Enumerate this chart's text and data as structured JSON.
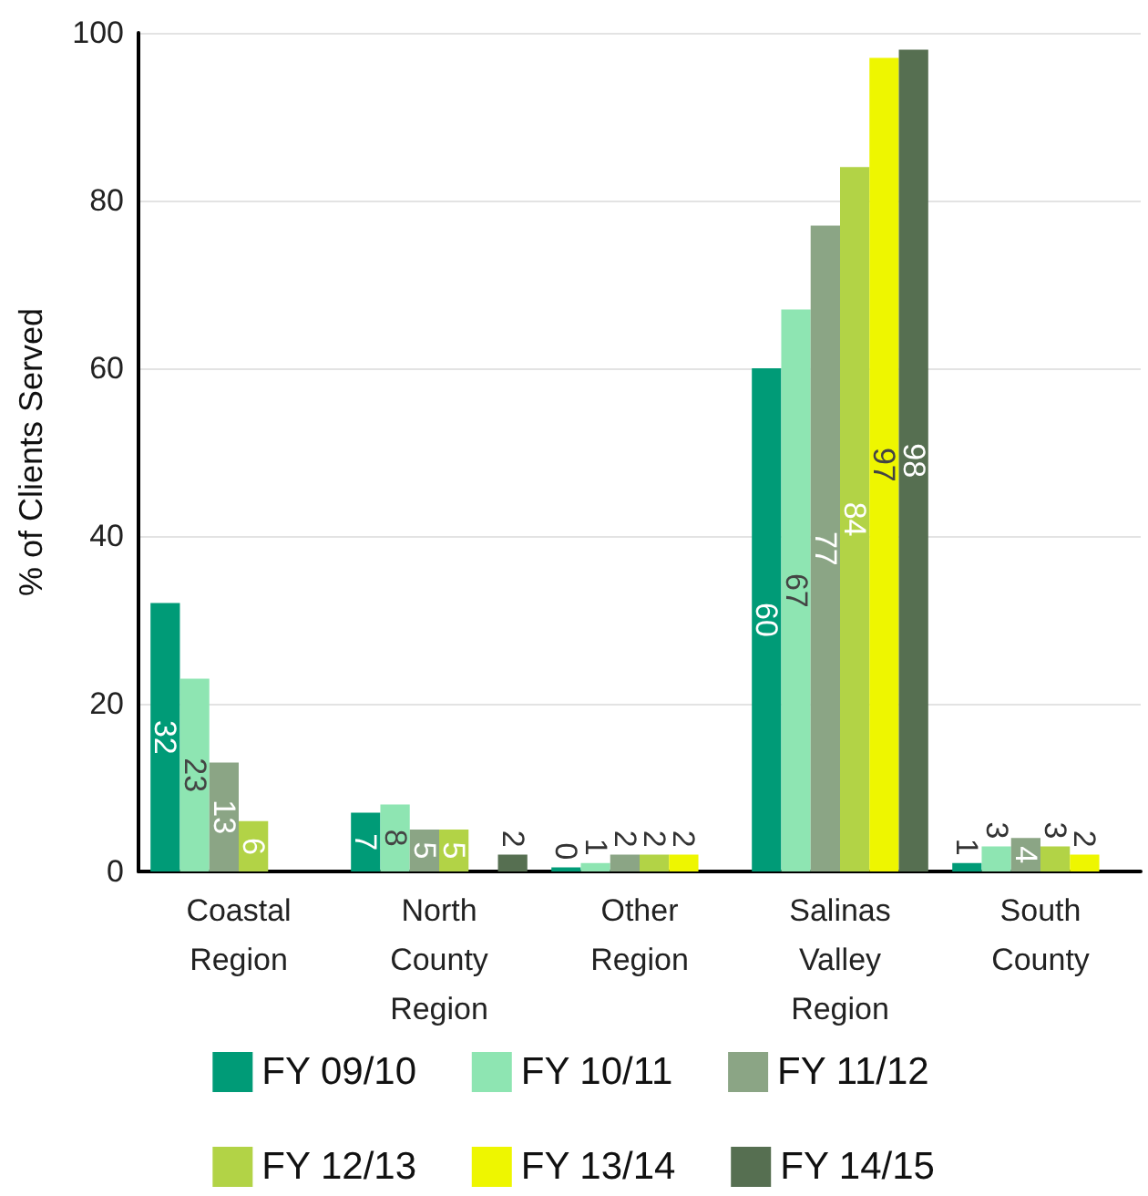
{
  "chart_data": {
    "type": "bar",
    "ylabel": "% of Clients Served",
    "categories": [
      "Coastal\nRegion",
      "North\nCounty\nRegion",
      "Other\nRegion",
      "Salinas\nValley\nRegion",
      "South\nCounty"
    ],
    "series": [
      {
        "name": "FY 09/10",
        "color": "#009b77",
        "values": [
          32,
          7,
          0.5,
          60,
          1
        ],
        "value_labels": [
          "32",
          "7",
          "0",
          "60",
          "1"
        ]
      },
      {
        "name": "FY 10/11",
        "color": "#8ee5b2",
        "values": [
          23,
          8,
          1,
          67,
          3
        ],
        "value_labels": [
          "23",
          "8",
          "1",
          "67",
          "3"
        ]
      },
      {
        "name": "FY 11/12",
        "color": "#8ba585",
        "values": [
          13,
          5,
          2,
          77,
          4
        ],
        "value_labels": [
          "13",
          "5",
          "2",
          "77",
          "4"
        ]
      },
      {
        "name": "FY 12/13",
        "color": "#b2d346",
        "values": [
          6,
          5,
          2,
          84,
          3
        ],
        "value_labels": [
          "6",
          "5",
          "2",
          "84",
          "3"
        ]
      },
      {
        "name": "FY 13/14",
        "color": "#eef600",
        "values": [
          null,
          null,
          2,
          97,
          2
        ],
        "value_labels": [
          null,
          null,
          "2",
          "97",
          "2"
        ]
      },
      {
        "name": "FY 14/15",
        "color": "#566f51",
        "values": [
          null,
          2,
          null,
          98,
          null
        ],
        "value_labels": [
          null,
          "2",
          null,
          "98",
          null
        ]
      }
    ],
    "ylim": [
      0,
      100
    ],
    "yticks": [
      0,
      20,
      40,
      60,
      80,
      100
    ],
    "grid": "y",
    "legend": "bottom"
  }
}
